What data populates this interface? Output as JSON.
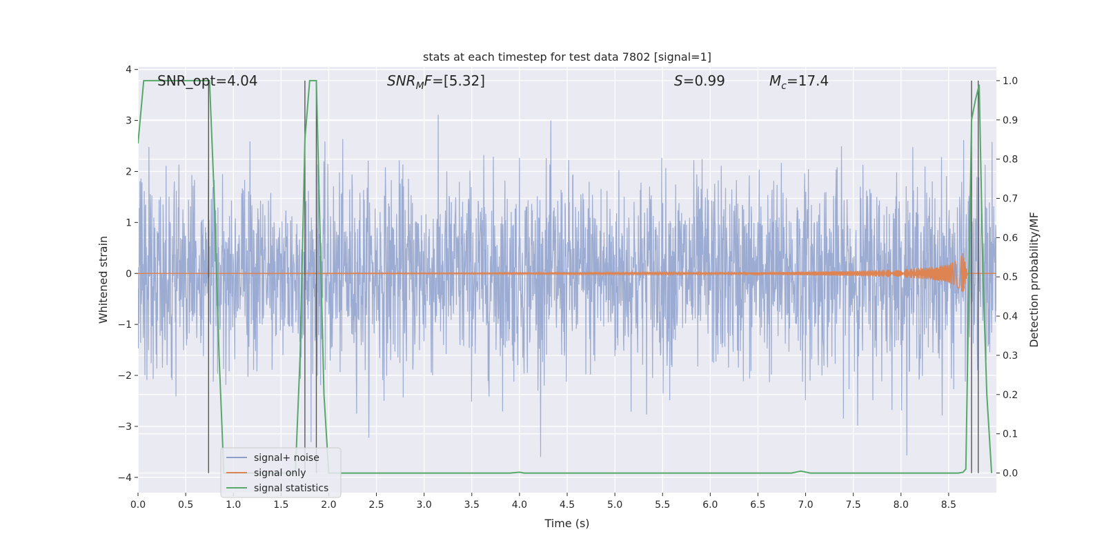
{
  "chart_data": {
    "type": "line",
    "title": "stats at each timestep for test data 7802 [signal=1]",
    "xlabel": "Time (s)",
    "ylabel": "Whitened strain",
    "y2label": "Detection probability/MF",
    "xlim": [
      0,
      9
    ],
    "ylim": [
      -4.3,
      4.05
    ],
    "y2lim": [
      -0.05,
      1.035
    ],
    "x_ticks": [
      0.0,
      0.5,
      1.0,
      1.5,
      2.0,
      2.5,
      3.0,
      3.5,
      4.0,
      4.5,
      5.0,
      5.5,
      6.0,
      6.5,
      7.0,
      7.5,
      8.0,
      8.5
    ],
    "x_tick_labels": [
      "0.0",
      "0.5",
      "1.0",
      "1.5",
      "2.0",
      "2.5",
      "3.0",
      "3.5",
      "4.0",
      "4.5",
      "5.0",
      "5.5",
      "6.0",
      "6.5",
      "7.0",
      "7.5",
      "8.0",
      "8.5"
    ],
    "y_ticks": [
      4,
      3,
      2,
      1,
      0,
      -1,
      -2,
      -3,
      -4
    ],
    "y_tick_labels": [
      "4",
      "3",
      "2",
      "1",
      "0",
      "−1",
      "−2",
      "−3",
      "−4"
    ],
    "y2_ticks": [
      1.0,
      0.9,
      0.8,
      0.7,
      0.6,
      0.5,
      0.4,
      0.3,
      0.2,
      0.1,
      0.0
    ],
    "y2_tick_labels": [
      "1.0",
      "0.9",
      "0.8",
      "0.7",
      "0.6",
      "0.5",
      "0.4",
      "0.3",
      "0.2",
      "0.1",
      "0.0"
    ],
    "grid": true,
    "legend_position": "lower-left",
    "annotations": [
      {
        "id": "snr-opt",
        "text": "SNR_opt=4.04"
      },
      {
        "id": "snr-mf",
        "text": "SNR_MF=[5.32]"
      },
      {
        "id": "stat-s",
        "text": "S=0.99"
      },
      {
        "id": "chirp-mass",
        "text": "M_c=17.4"
      }
    ],
    "series": [
      {
        "name": "signal+ noise",
        "color": "#8da0cb",
        "axis": "left",
        "noise_sd": 1.0,
        "envelope_extremes": [
          -3.6,
          3.6
        ]
      },
      {
        "name": "signal only",
        "color": "#dd8452",
        "axis": "left",
        "envelope": {
          "x": [
            0,
            6.5,
            7.5,
            8.0,
            8.3,
            8.5,
            8.6,
            8.65,
            8.7
          ],
          "amp": [
            0.0,
            0.02,
            0.05,
            0.08,
            0.12,
            0.18,
            0.28,
            0.4,
            0.0
          ]
        }
      },
      {
        "name": "signal statistics",
        "color": "#55a868",
        "axis": "right",
        "x": [
          0.0,
          0.06,
          0.1,
          0.7,
          0.75,
          0.8,
          0.85,
          0.9,
          1.0,
          1.65,
          1.7,
          1.75,
          1.8,
          1.83,
          1.87,
          1.95,
          2.0,
          3.9,
          4.0,
          4.05,
          6.85,
          6.95,
          7.05,
          8.6,
          8.65,
          8.68,
          8.74,
          8.78,
          8.82,
          8.86,
          8.9,
          8.95
        ],
        "y": [
          0.84,
          1.0,
          1.0,
          1.0,
          1.0,
          0.7,
          0.3,
          0.0,
          0.0,
          0.0,
          0.3,
          0.85,
          1.0,
          1.0,
          1.0,
          0.2,
          0.0,
          0.0,
          0.002,
          0.0,
          0.0,
          0.005,
          0.0,
          0.0,
          0.002,
          0.01,
          0.9,
          0.95,
          0.99,
          0.5,
          0.2,
          0.0
        ]
      }
    ],
    "vertical_markers_x": [
      0.74,
      1.75,
      1.87,
      8.74,
      8.81
    ],
    "marker_range_y2": [
      0.0,
      1.0
    ]
  }
}
